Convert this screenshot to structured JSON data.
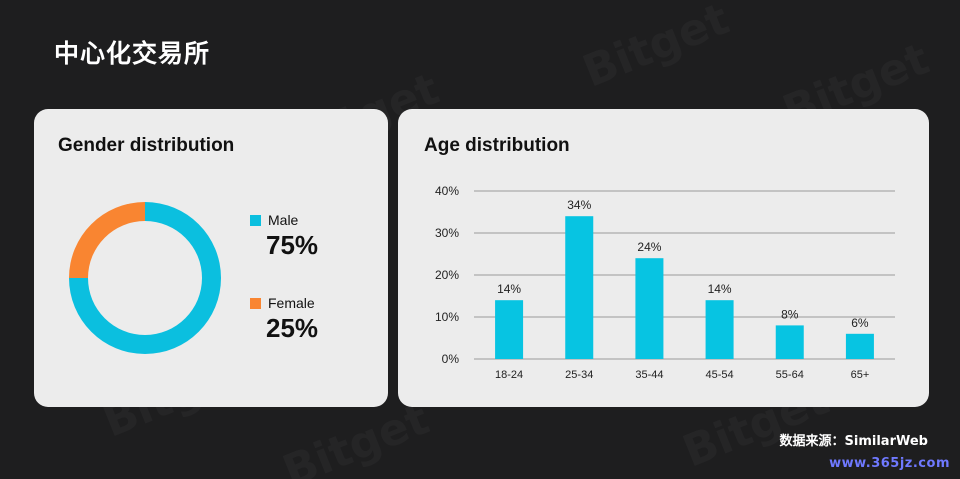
{
  "page": {
    "title": "中心化交易所",
    "source": "数据来源：SimilarWeb",
    "site": "www.365jz.com",
    "watermark": "Bitget"
  },
  "colors": {
    "background": "#1e1e1f",
    "card": "#ececec",
    "male": "#0bbfdf",
    "female": "#f98531",
    "bar": "#07c4e2"
  },
  "gender": {
    "title": "Gender distribution",
    "legend": [
      {
        "label": "Male",
        "value": "75%"
      },
      {
        "label": "Female",
        "value": "25%"
      }
    ]
  },
  "age": {
    "title": "Age distribution"
  },
  "chart_data": [
    {
      "type": "pie",
      "title": "Gender distribution",
      "donut": true,
      "categories": [
        "Male",
        "Female"
      ],
      "values": [
        75,
        25
      ],
      "colors": [
        "#0bbfdf",
        "#f98531"
      ],
      "legend": "right"
    },
    {
      "type": "bar",
      "title": "Age distribution",
      "categories": [
        "18-24",
        "25-34",
        "35-44",
        "45-54",
        "55-64",
        "65+"
      ],
      "values": [
        14,
        34,
        24,
        14,
        8,
        6
      ],
      "data_labels": [
        "14%",
        "34%",
        "24%",
        "14%",
        "8%",
        "6%"
      ],
      "ylim": [
        0,
        40
      ],
      "yticks": [
        "0%",
        "10%",
        "20%",
        "30%",
        "40%"
      ],
      "ytick_values": [
        0,
        10,
        20,
        30,
        40
      ],
      "grid": true,
      "color": "#07c4e2"
    }
  ]
}
